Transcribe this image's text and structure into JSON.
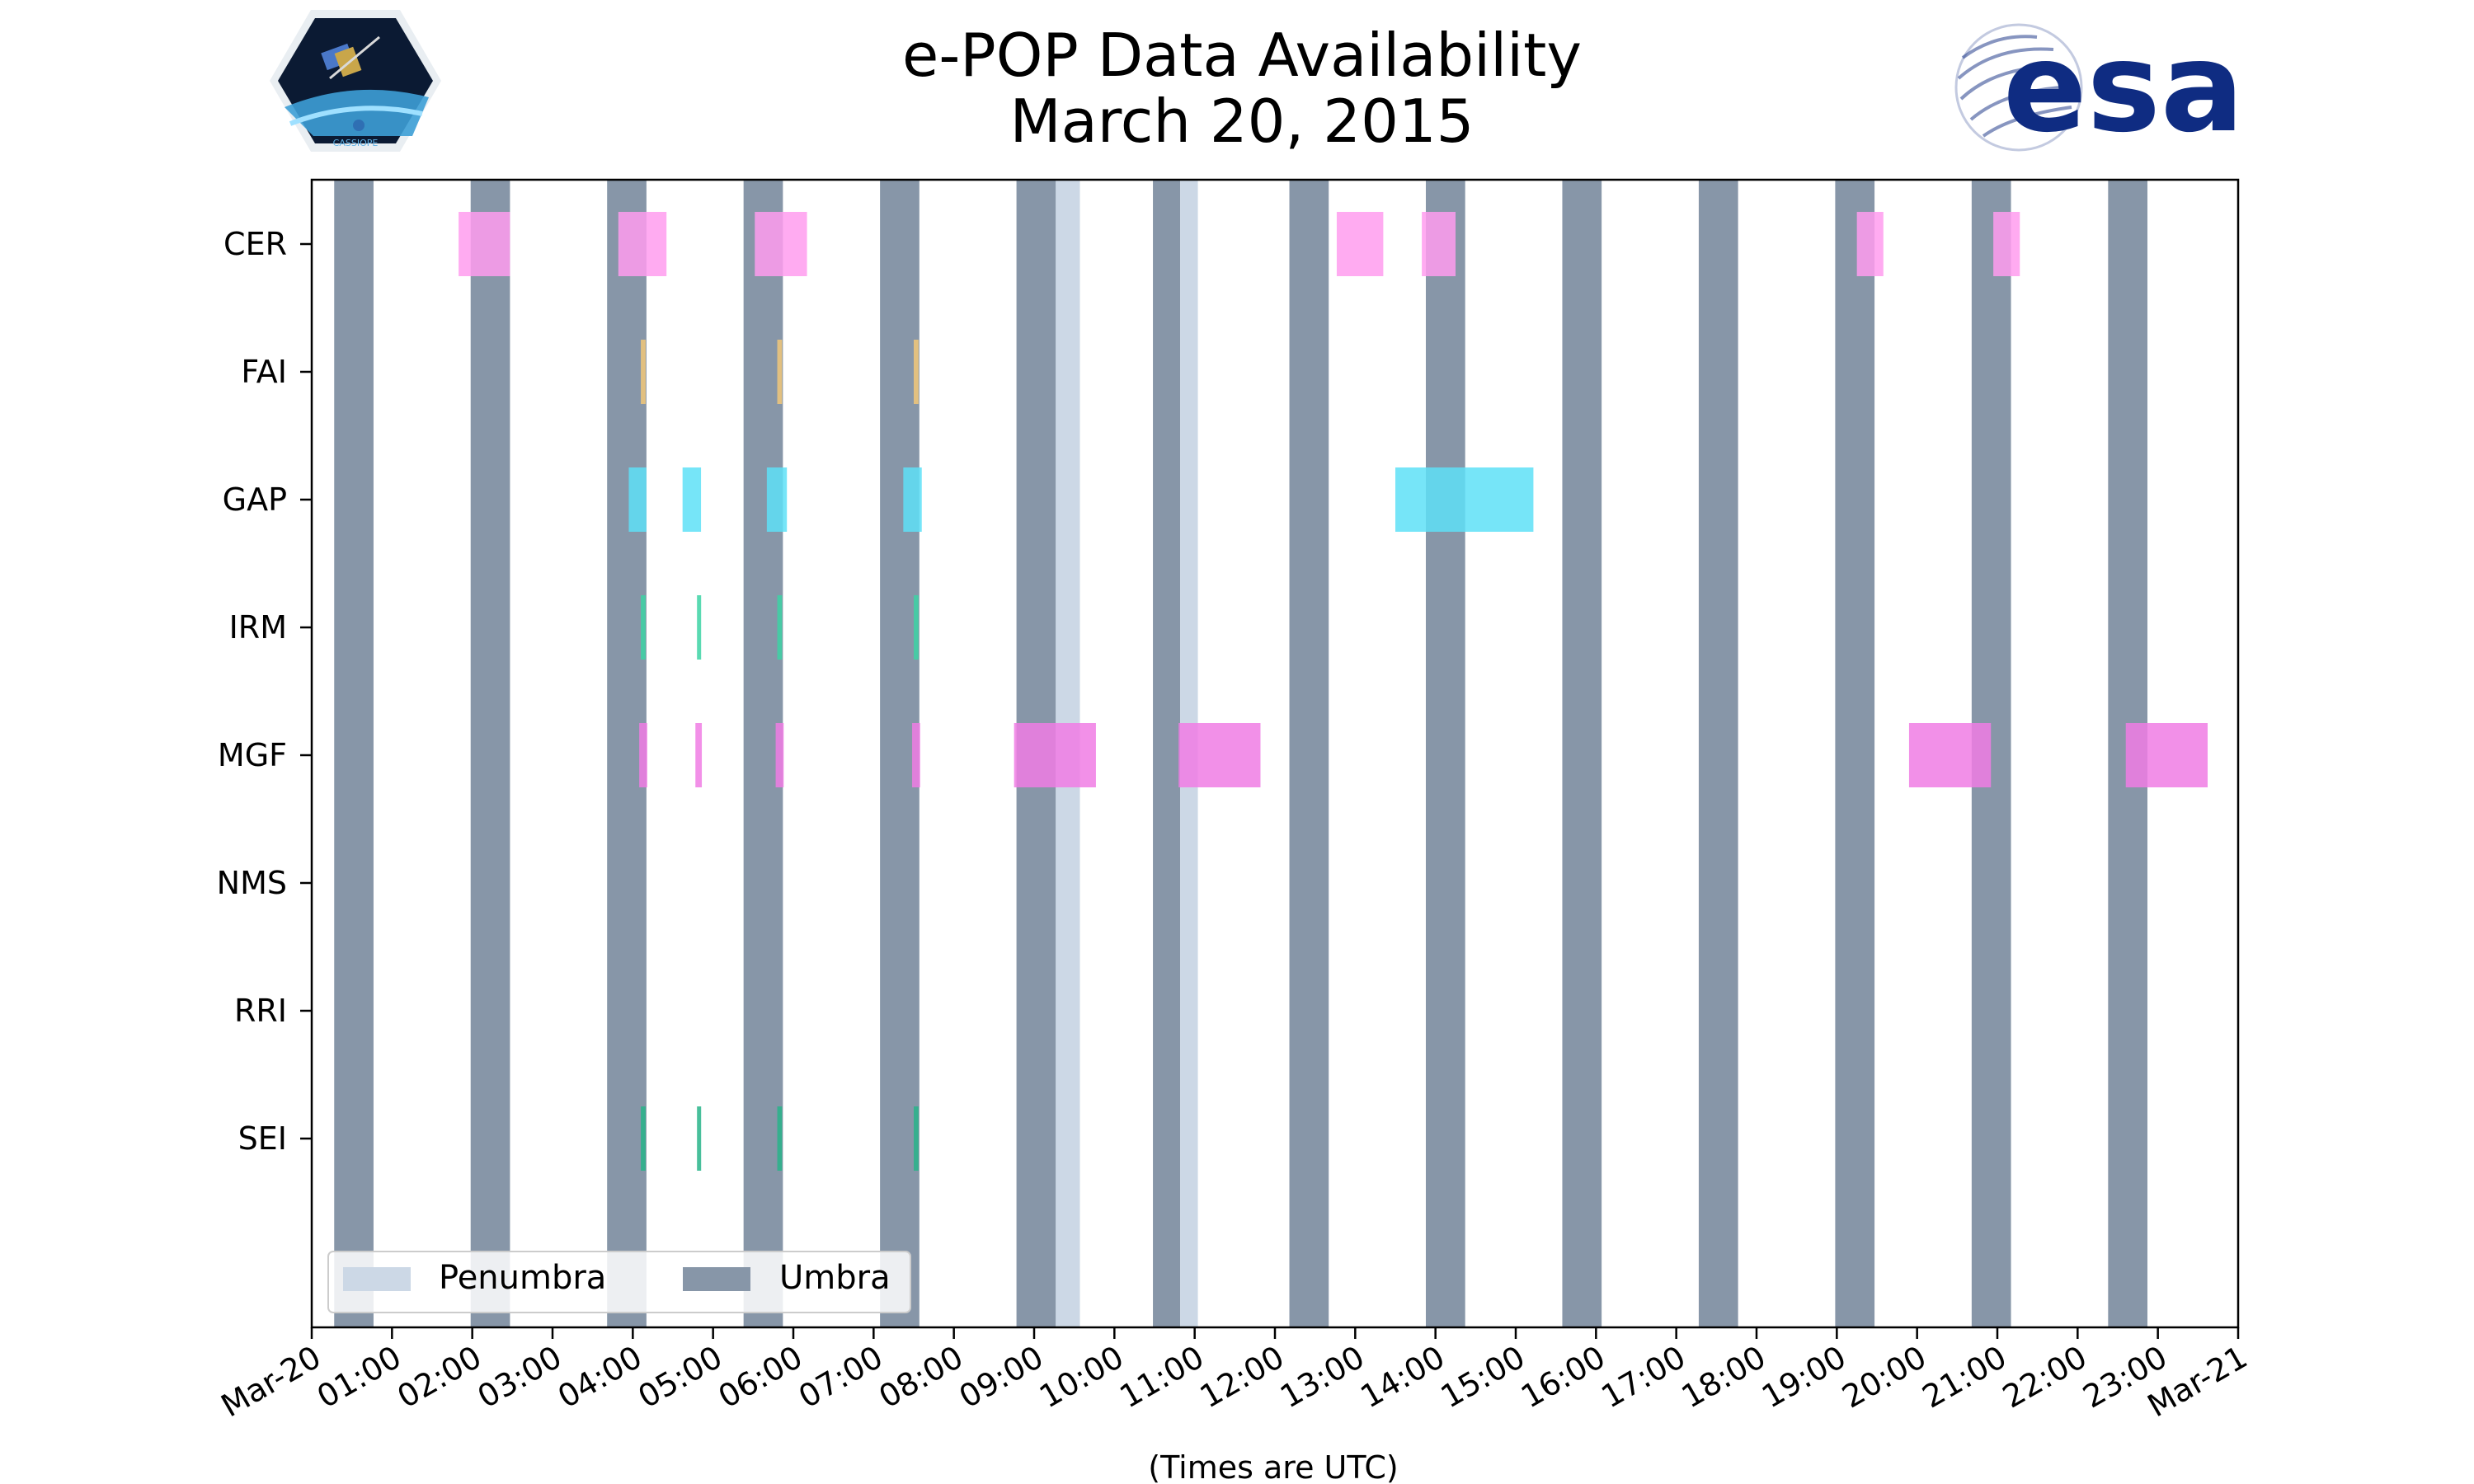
{
  "colors": {
    "umbra": "#8796a8",
    "penumbra": "#ccd8e6",
    "CER": "#ff9cef",
    "FAI": "#f2c879",
    "GAP": "#5ee0f7",
    "IRM": "#3dd3a4",
    "MGF": "#f07de4",
    "NMS": "#888888",
    "RRI": "#888888",
    "SEI": "#28b48a",
    "esa_brand": "#0f2c82"
  },
  "logos": {
    "left_icon": "cassiope-mission-patch",
    "left_text": "CASSIOPE",
    "right_icon": "esa-logo",
    "right_text": "esa"
  },
  "chart_data": {
    "type": "bar",
    "title": "e-POP Data Availability",
    "subtitle": "March 20, 2015",
    "xlabel": "(Times are UTC)",
    "ylabel": "",
    "xlim": [
      0,
      24
    ],
    "x_unit": "hours UTC",
    "x_ticks": [
      "Mar-20",
      "01:00",
      "02:00",
      "03:00",
      "04:00",
      "05:00",
      "06:00",
      "07:00",
      "08:00",
      "09:00",
      "10:00",
      "11:00",
      "12:00",
      "13:00",
      "14:00",
      "15:00",
      "16:00",
      "17:00",
      "18:00",
      "19:00",
      "20:00",
      "21:00",
      "22:00",
      "23:00",
      "Mar-21"
    ],
    "categories": [
      "CER",
      "FAI",
      "GAP",
      "IRM",
      "MGF",
      "NMS",
      "RRI",
      "SEI"
    ],
    "grid": false,
    "legend": {
      "placement": "lower-left",
      "entries": [
        {
          "label": "Penumbra",
          "color_key": "penumbra"
        },
        {
          "label": "Umbra",
          "color_key": "umbra"
        }
      ]
    },
    "umbra": [
      [
        0.28,
        0.77
      ],
      [
        1.98,
        2.47
      ],
      [
        3.68,
        4.17
      ],
      [
        5.38,
        5.87
      ],
      [
        7.08,
        7.57
      ],
      [
        8.78,
        9.27
      ],
      [
        10.48,
        10.82
      ],
      [
        12.18,
        12.67
      ],
      [
        13.88,
        14.37
      ],
      [
        15.58,
        16.07
      ],
      [
        17.28,
        17.77
      ],
      [
        18.98,
        19.47
      ],
      [
        20.68,
        21.17
      ],
      [
        22.38,
        22.87
      ]
    ],
    "penumbra": [
      [
        9.27,
        9.57
      ],
      [
        10.82,
        11.04
      ]
    ],
    "series": [
      {
        "name": "CER",
        "intervals": [
          [
            1.83,
            2.47
          ],
          [
            3.82,
            4.42
          ],
          [
            5.52,
            6.17
          ],
          [
            12.77,
            13.35
          ],
          [
            13.83,
            14.25
          ],
          [
            19.25,
            19.58
          ],
          [
            20.95,
            21.28
          ]
        ]
      },
      {
        "name": "FAI",
        "intervals": [
          [
            4.1,
            4.16
          ],
          [
            5.8,
            5.86
          ],
          [
            7.5,
            7.56
          ]
        ]
      },
      {
        "name": "GAP",
        "intervals": [
          [
            3.95,
            4.17
          ],
          [
            4.62,
            4.85
          ],
          [
            5.67,
            5.92
          ],
          [
            7.37,
            7.6
          ],
          [
            13.5,
            15.22
          ]
        ]
      },
      {
        "name": "IRM",
        "intervals": [
          [
            4.1,
            4.16
          ],
          [
            4.8,
            4.84
          ],
          [
            5.8,
            5.86
          ],
          [
            7.5,
            7.56
          ]
        ]
      },
      {
        "name": "MGF",
        "intervals": [
          [
            4.08,
            4.18
          ],
          [
            4.78,
            4.86
          ],
          [
            5.78,
            5.88
          ],
          [
            7.48,
            7.58
          ],
          [
            8.75,
            9.77
          ],
          [
            10.8,
            11.82
          ],
          [
            19.9,
            20.92
          ],
          [
            22.6,
            23.62
          ]
        ]
      },
      {
        "name": "NMS",
        "intervals": []
      },
      {
        "name": "RRI",
        "intervals": []
      },
      {
        "name": "SEI",
        "intervals": [
          [
            4.1,
            4.16
          ],
          [
            4.8,
            4.84
          ],
          [
            5.8,
            5.86
          ],
          [
            7.5,
            7.56
          ]
        ]
      }
    ]
  }
}
